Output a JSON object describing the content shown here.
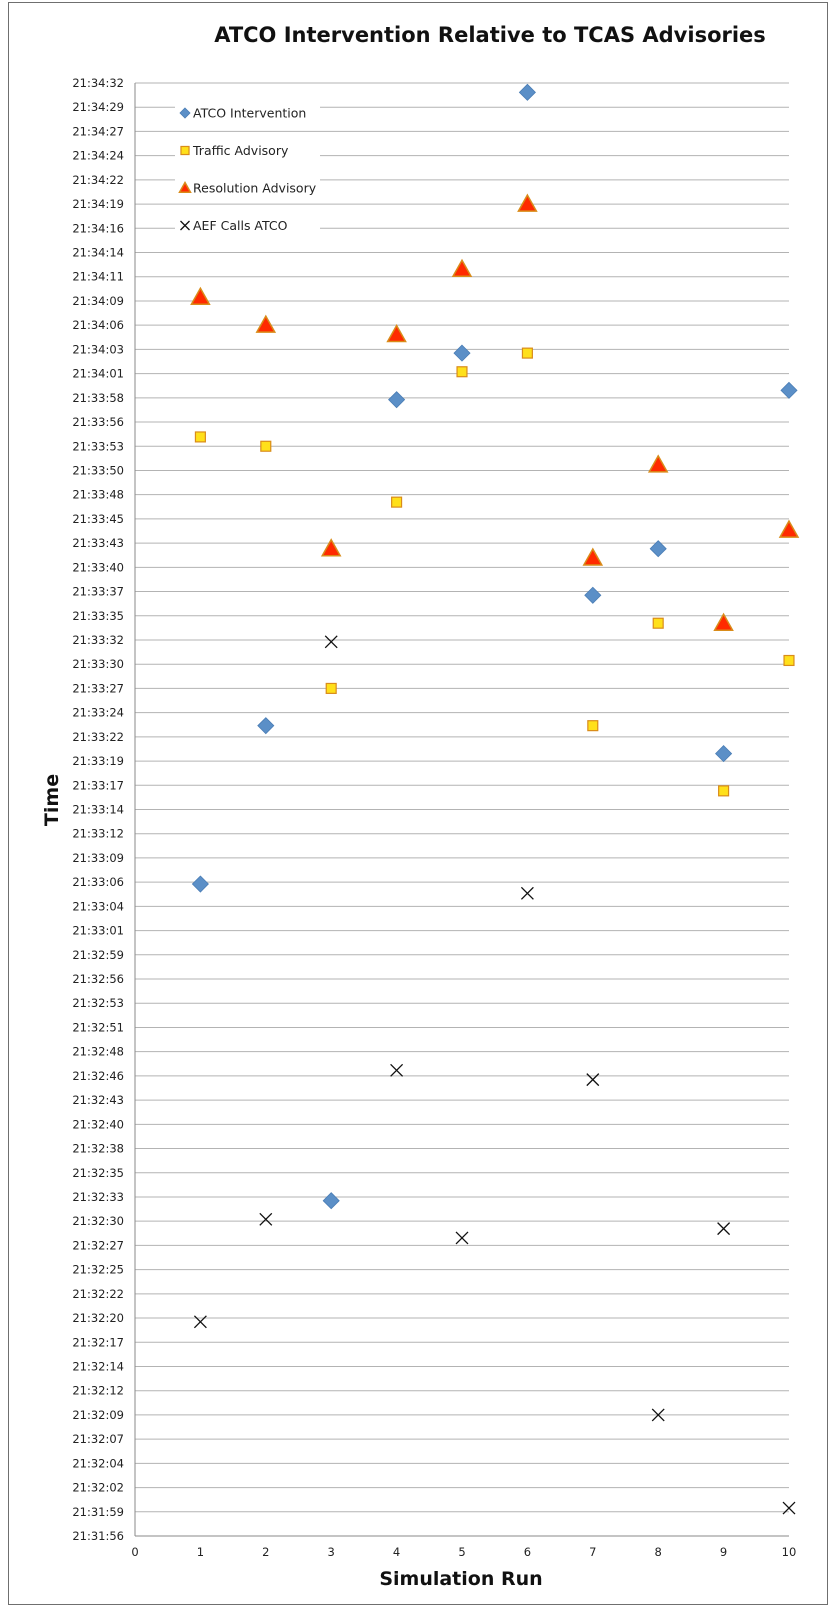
{
  "chart_data": {
    "type": "scatter",
    "title": "ATCO Intervention Relative to TCAS Advisories",
    "xlabel": "Simulation Run",
    "ylabel": "Time",
    "xlim": [
      0,
      10
    ],
    "ylim": [
      "21:31:56",
      "21:34:32"
    ],
    "x_ticks": [
      "0",
      "1",
      "2",
      "3",
      "4",
      "5",
      "6",
      "7",
      "8",
      "9",
      "10"
    ],
    "y_ticks": [
      "21:34:32",
      "21:34:29",
      "21:34:27",
      "21:34:24",
      "21:34:22",
      "21:34:19",
      "21:34:16",
      "21:34:14",
      "21:34:11",
      "21:34:09",
      "21:34:06",
      "21:34:03",
      "21:34:01",
      "21:33:58",
      "21:33:56",
      "21:33:53",
      "21:33:50",
      "21:33:48",
      "21:33:45",
      "21:33:43",
      "21:33:40",
      "21:33:37",
      "21:33:35",
      "21:33:32",
      "21:33:30",
      "21:33:27",
      "21:33:24",
      "21:33:22",
      "21:33:19",
      "21:33:17",
      "21:33:14",
      "21:33:12",
      "21:33:09",
      "21:33:06",
      "21:33:04",
      "21:33:01",
      "21:32:59",
      "21:32:56",
      "21:32:53",
      "21:32:51",
      "21:32:48",
      "21:32:46",
      "21:32:43",
      "21:32:40",
      "21:32:38",
      "21:32:35",
      "21:32:33",
      "21:32:30",
      "21:32:27",
      "21:32:25",
      "21:32:22",
      "21:32:20",
      "21:32:17",
      "21:32:14",
      "21:32:12",
      "21:32:09",
      "21:32:07",
      "21:32:04",
      "21:32:02",
      "21:31:59",
      "21:31:56"
    ],
    "grid": true,
    "legend_position": "top-left",
    "series": [
      {
        "name": "ATCO Intervention",
        "marker": "diamond",
        "color": "#5b8fc7",
        "points": [
          {
            "x": 1,
            "y": "21:33:06"
          },
          {
            "x": 2,
            "y": "21:33:23"
          },
          {
            "x": 3,
            "y": "21:32:32"
          },
          {
            "x": 4,
            "y": "21:33:58"
          },
          {
            "x": 5,
            "y": "21:34:03"
          },
          {
            "x": 6,
            "y": "21:34:31"
          },
          {
            "x": 7,
            "y": "21:33:37"
          },
          {
            "x": 8,
            "y": "21:33:42"
          },
          {
            "x": 9,
            "y": "21:33:20"
          },
          {
            "x": 10,
            "y": "21:33:59"
          }
        ]
      },
      {
        "name": "Traffic Advisory",
        "marker": "square",
        "color": "#ffe01a",
        "edge_color": "#d98c1a",
        "points": [
          {
            "x": 1,
            "y": "21:33:54"
          },
          {
            "x": 2,
            "y": "21:33:53"
          },
          {
            "x": 3,
            "y": "21:33:27"
          },
          {
            "x": 4,
            "y": "21:33:47"
          },
          {
            "x": 5,
            "y": "21:34:01"
          },
          {
            "x": 6,
            "y": "21:34:03"
          },
          {
            "x": 7,
            "y": "21:33:23"
          },
          {
            "x": 8,
            "y": "21:33:34"
          },
          {
            "x": 9,
            "y": "21:33:16"
          },
          {
            "x": 10,
            "y": "21:33:30"
          }
        ]
      },
      {
        "name": "Resolution Advisory",
        "marker": "triangle",
        "color": "#ff2a00",
        "edge_color": "#d98c1a",
        "points": [
          {
            "x": 1,
            "y": "21:34:09"
          },
          {
            "x": 2,
            "y": "21:34:06"
          },
          {
            "x": 3,
            "y": "21:33:42"
          },
          {
            "x": 4,
            "y": "21:34:05"
          },
          {
            "x": 5,
            "y": "21:34:12"
          },
          {
            "x": 6,
            "y": "21:34:19"
          },
          {
            "x": 7,
            "y": "21:33:41"
          },
          {
            "x": 8,
            "y": "21:33:51"
          },
          {
            "x": 9,
            "y": "21:33:34"
          },
          {
            "x": 10,
            "y": "21:33:44"
          }
        ]
      },
      {
        "name": "AEF Calls ATCO",
        "marker": "x",
        "color": "#111111",
        "points": [
          {
            "x": 1,
            "y": "21:32:19"
          },
          {
            "x": 2,
            "y": "21:32:30"
          },
          {
            "x": 3,
            "y": "21:33:32"
          },
          {
            "x": 4,
            "y": "21:32:46"
          },
          {
            "x": 5,
            "y": "21:32:28"
          },
          {
            "x": 6,
            "y": "21:33:05"
          },
          {
            "x": 7,
            "y": "21:32:45"
          },
          {
            "x": 8,
            "y": "21:32:09"
          },
          {
            "x": 9,
            "y": "21:32:29"
          },
          {
            "x": 10,
            "y": "21:31:59"
          }
        ]
      }
    ]
  }
}
